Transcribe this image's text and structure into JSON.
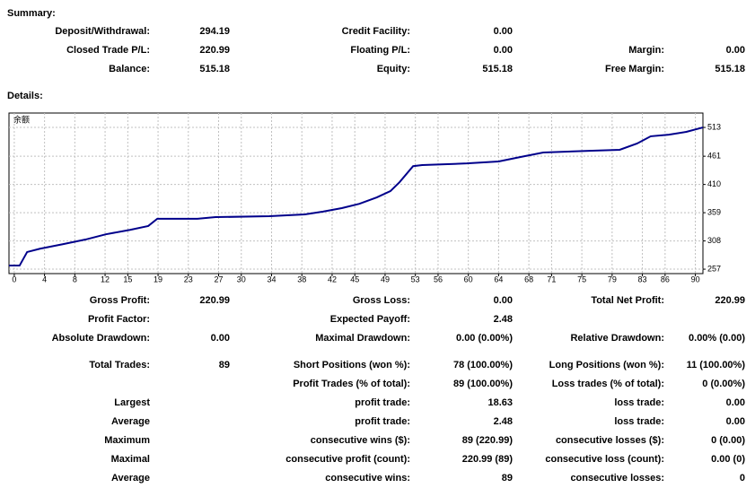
{
  "summary": {
    "title": "Summary:",
    "rows": [
      [
        {
          "label": "Deposit/Withdrawal:",
          "value": "294.19"
        },
        {
          "label": "Credit Facility:",
          "value": "0.00"
        },
        null
      ],
      [
        {
          "label": "Closed Trade P/L:",
          "value": "220.99"
        },
        {
          "label": "Floating P/L:",
          "value": "0.00"
        },
        {
          "label": "Margin:",
          "value": "0.00"
        }
      ],
      [
        {
          "label": "Balance:",
          "value": "515.18"
        },
        {
          "label": "Equity:",
          "value": "515.18"
        },
        {
          "label": "Free Margin:",
          "value": "515.18"
        }
      ]
    ]
  },
  "details": {
    "title": "Details:",
    "rows": [
      [
        {
          "label": "Gross Profit:",
          "value": "220.99"
        },
        {
          "label": "Gross Loss:",
          "value": "0.00"
        },
        {
          "label": "Total Net Profit:",
          "value": "220.99"
        }
      ],
      [
        {
          "label": "Profit Factor:"
        },
        {
          "label": "Expected Payoff:",
          "value": "2.48"
        },
        null
      ],
      [
        {
          "label": "Absolute Drawdown:",
          "value": "0.00"
        },
        {
          "label": "Maximal Drawdown:",
          "value": "0.00 (0.00%)"
        },
        {
          "label": "Relative Drawdown:",
          "value": "0.00% (0.00)"
        }
      ],
      [
        {
          "label": "Total Trades:",
          "value": "89"
        },
        {
          "label": "Short Positions (won %):",
          "value": "78 (100.00%)"
        },
        {
          "label": "Long Positions (won %):",
          "value": "11 (100.00%)"
        }
      ],
      [
        null,
        {
          "label": "Profit Trades (% of total):",
          "value": "89 (100.00%)"
        },
        {
          "label": "Loss trades (% of total):",
          "value": "0 (0.00%)"
        }
      ],
      [
        {
          "label": "Largest"
        },
        {
          "label": "profit trade:",
          "value": "18.63"
        },
        {
          "label": "loss trade:",
          "value": "0.00"
        }
      ],
      [
        {
          "label": "Average"
        },
        {
          "label": "profit trade:",
          "value": "2.48"
        },
        {
          "label": "loss trade:",
          "value": "0.00"
        }
      ],
      [
        {
          "label": "Maximum"
        },
        {
          "label": "consecutive wins ($):",
          "value": "89 (220.99)"
        },
        {
          "label": "consecutive losses ($):",
          "value": "0 (0.00)"
        }
      ],
      [
        {
          "label": "Maximal"
        },
        {
          "label": "consecutive profit (count):",
          "value": "220.99 (89)"
        },
        {
          "label": "consecutive loss (count):",
          "value": "0.00 (0)"
        }
      ],
      [
        {
          "label": "Average"
        },
        {
          "label": "consecutive wins:",
          "value": "89"
        },
        {
          "label": "consecutive losses:",
          "value": "0"
        }
      ]
    ]
  },
  "chart_data": {
    "type": "line",
    "x": [
      -0.7,
      0.7,
      1.7,
      3.4,
      6.4,
      9.4,
      12.1,
      15.3,
      17.7,
      18.9,
      24.2,
      26.6,
      33.7,
      38.4,
      40.8,
      43.2,
      45.6,
      47.9,
      49.7,
      50.9,
      52.7,
      53.9,
      59.8,
      64,
      66.9,
      69.9,
      76.4,
      80,
      82.3,
      84.1,
      86.5,
      88.8,
      91
    ],
    "series": [
      {
        "name": "余额",
        "color": "#00008b",
        "values": [
          263.5,
          263.5,
          288,
          294,
          302,
          310.5,
          320,
          328,
          335,
          348,
          348,
          351,
          352.6,
          356,
          361,
          367,
          375,
          386.6,
          398,
          414,
          443,
          445,
          448,
          451.5,
          459.6,
          467.7,
          471,
          472.6,
          484,
          497,
          500,
          505,
          513
        ]
      }
    ],
    "xlim": [
      -0.7,
      91
    ],
    "ylim": [
      249,
      539
    ],
    "xticks": [
      0,
      4,
      8,
      12,
      15,
      19,
      23,
      27,
      30,
      34,
      38,
      42,
      45,
      49,
      53,
      56,
      60,
      64,
      68,
      71,
      75,
      79,
      83,
      86,
      90
    ],
    "yticks": [
      257,
      308,
      359,
      410,
      461,
      513
    ],
    "grid": true
  }
}
